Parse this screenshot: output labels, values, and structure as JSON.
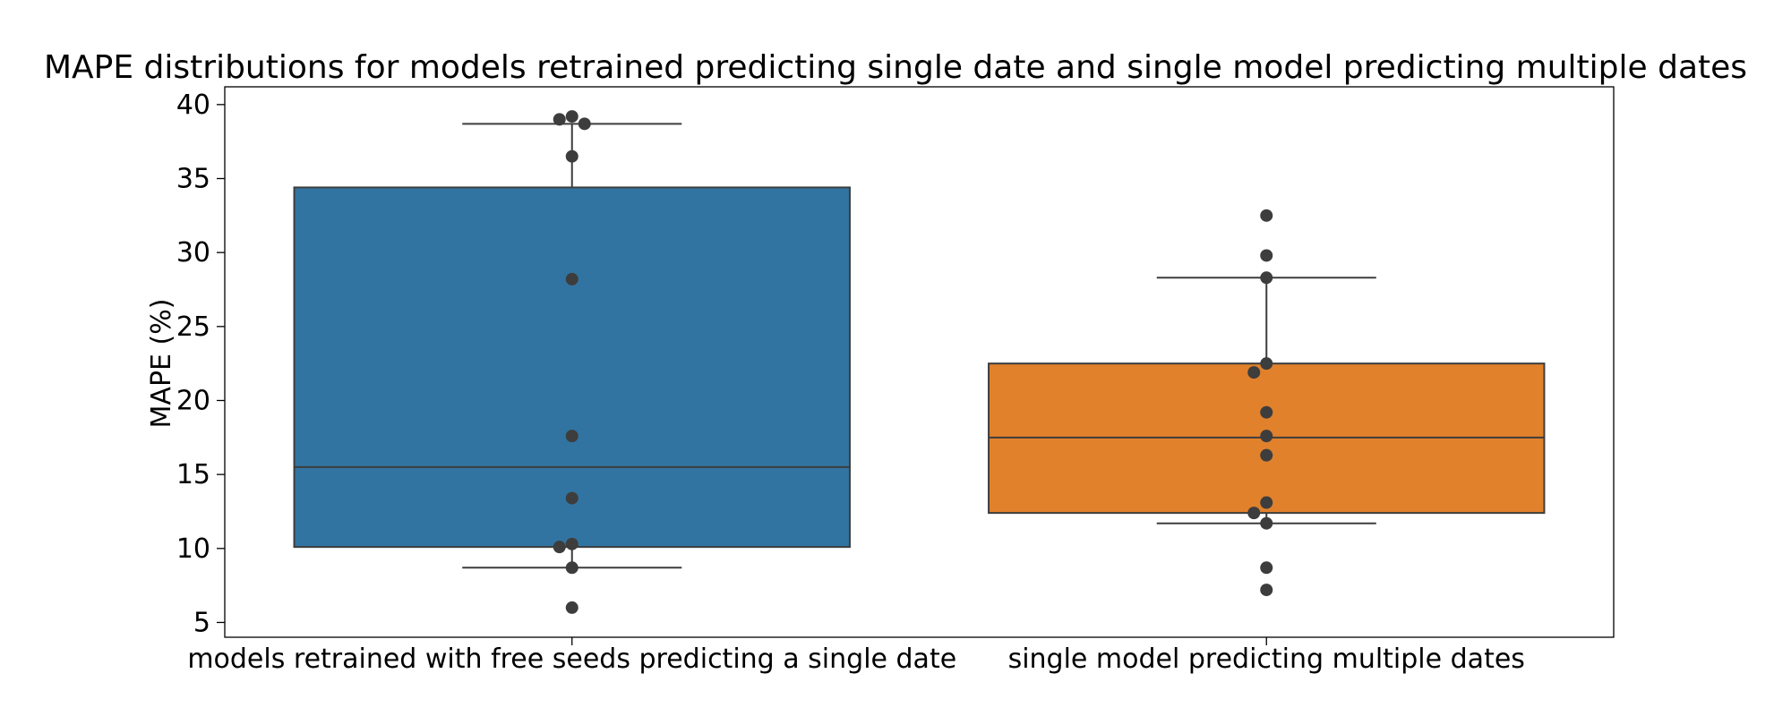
{
  "chart_data": {
    "type": "box",
    "title": "MAPE distributions for models retrained predicting single date and single model predicting multiple dates",
    "xlabel": "",
    "ylabel": "MAPE (%)",
    "ylim": [
      4.0,
      41.2
    ],
    "yticks": [
      5,
      10,
      15,
      20,
      25,
      30,
      35,
      40
    ],
    "grid": false,
    "categories": [
      "models retrained with free seeds predicting a single date",
      "single model predicting multiple dates"
    ],
    "boxes": [
      {
        "category": "models retrained with free seeds predicting a single date",
        "color": "#3274a1",
        "whisker_low": 8.7,
        "q1": 10.1,
        "median": 15.5,
        "q3": 34.4,
        "whisker_high": 38.7,
        "points": [
          39.2,
          39.0,
          38.7,
          36.5,
          28.2,
          17.6,
          13.4,
          10.3,
          10.1,
          8.7,
          6.0
        ]
      },
      {
        "category": "single model predicting multiple dates",
        "color": "#e1812c",
        "whisker_low": 11.7,
        "q1": 12.4,
        "median": 17.5,
        "q3": 22.5,
        "whisker_high": 28.3,
        "points": [
          32.5,
          29.8,
          28.3,
          22.5,
          21.9,
          19.2,
          17.6,
          16.3,
          13.1,
          12.4,
          11.7,
          8.7,
          7.2
        ]
      }
    ],
    "point_color": "#3d3d3d",
    "line_color": "#3d3d3d"
  }
}
